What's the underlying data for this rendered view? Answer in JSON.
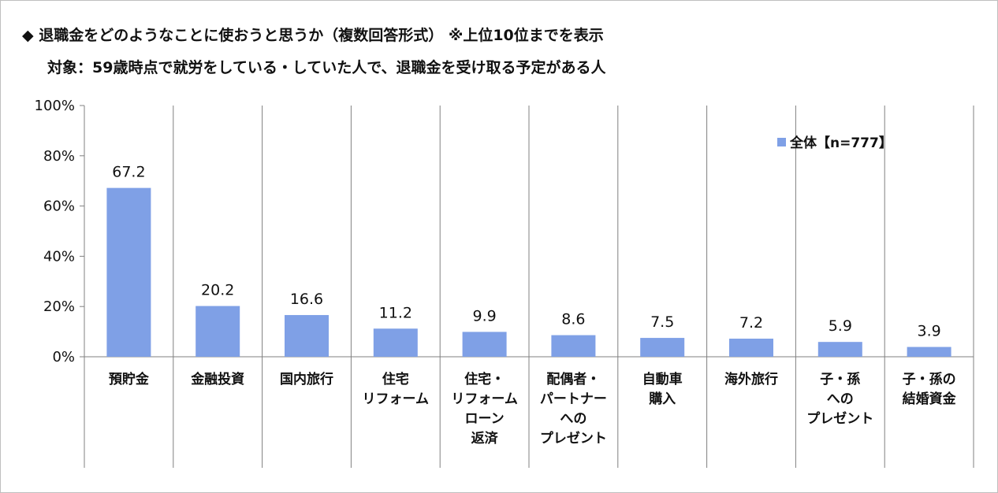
{
  "header": {
    "title": "◆ 退職金をどのようなことに使おうと思うか（複数回答形式） ※上位10位までを表示",
    "subtitle": "対象：59歳時点で就労をしている・していた人で、退職金を受け取る予定がある人"
  },
  "chart_data": {
    "type": "bar",
    "categories": [
      [
        "預貯金"
      ],
      [
        "金融投資"
      ],
      [
        "国内旅行"
      ],
      [
        "住宅",
        "リフォーム"
      ],
      [
        "住宅・",
        "リフォーム",
        "ローン",
        "返済"
      ],
      [
        "配偶者・",
        "パートナー",
        "への",
        "プレゼント"
      ],
      [
        "自動車",
        "購入"
      ],
      [
        "海外旅行"
      ],
      [
        "子・孫",
        "への",
        "プレゼント"
      ],
      [
        "子・孫の",
        "結婚資金"
      ]
    ],
    "series": [
      {
        "name": "全体【n=777】",
        "values": [
          67.2,
          20.2,
          16.6,
          11.2,
          9.9,
          8.6,
          7.5,
          7.2,
          5.9,
          3.9
        ],
        "value_labels": [
          "67.2",
          "20.2",
          "16.6",
          "11.2",
          "9.9",
          "8.6",
          "7.5",
          "7.2",
          "5.9",
          "3.9"
        ],
        "color": "#7fa0e6"
      }
    ],
    "ylim": [
      0,
      100
    ],
    "yticks": [
      0,
      20,
      40,
      60,
      80,
      100
    ],
    "ytick_labels": [
      "0%",
      "20%",
      "40%",
      "60%",
      "80%",
      "100%"
    ],
    "legend_position": "top-right",
    "grid": false
  }
}
